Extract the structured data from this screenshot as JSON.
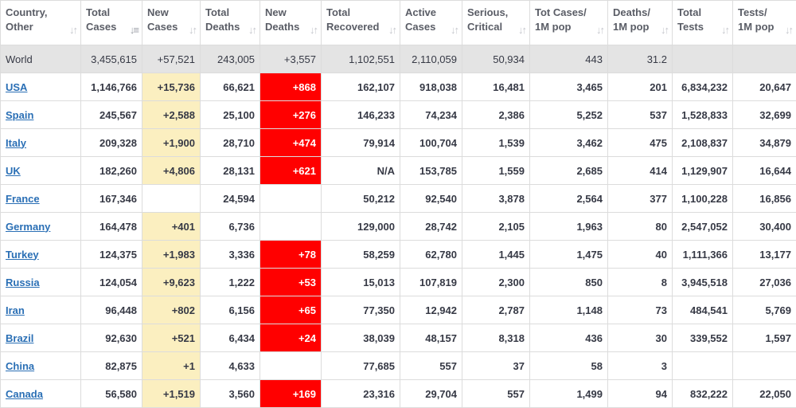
{
  "headers": [
    {
      "label": "Country,\nOther",
      "sort_icon": "sort-icon"
    },
    {
      "label": "Total\nCases",
      "sort_icon": "sort-desc-icon"
    },
    {
      "label": "New\nCases",
      "sort_icon": "sort-icon"
    },
    {
      "label": "Total\nDeaths",
      "sort_icon": "sort-icon"
    },
    {
      "label": "New\nDeaths",
      "sort_icon": "sort-icon"
    },
    {
      "label": "Total\nRecovered",
      "sort_icon": "sort-icon"
    },
    {
      "label": "Active\nCases",
      "sort_icon": "sort-icon"
    },
    {
      "label": "Serious,\nCritical",
      "sort_icon": "sort-icon"
    },
    {
      "label": "Tot Cases/\n1M pop",
      "sort_icon": "sort-icon"
    },
    {
      "label": "Deaths/\n1M pop",
      "sort_icon": "sort-icon"
    },
    {
      "label": "Total\nTests",
      "sort_icon": "sort-icon"
    },
    {
      "label": "Tests/\n1M pop",
      "sort_icon": "sort-icon"
    }
  ],
  "world": [
    "World",
    "3,455,615",
    "+57,521",
    "243,005",
    "+3,557",
    "1,102,551",
    "2,110,059",
    "50,934",
    "443",
    "31.2",
    "",
    ""
  ],
  "rows": [
    [
      "USA",
      "1,146,766",
      "+15,736",
      "66,621",
      "+868",
      "162,107",
      "918,038",
      "16,481",
      "3,465",
      "201",
      "6,834,232",
      "20,647"
    ],
    [
      "Spain",
      "245,567",
      "+2,588",
      "25,100",
      "+276",
      "146,233",
      "74,234",
      "2,386",
      "5,252",
      "537",
      "1,528,833",
      "32,699"
    ],
    [
      "Italy",
      "209,328",
      "+1,900",
      "28,710",
      "+474",
      "79,914",
      "100,704",
      "1,539",
      "3,462",
      "475",
      "2,108,837",
      "34,879"
    ],
    [
      "UK",
      "182,260",
      "+4,806",
      "28,131",
      "+621",
      "N/A",
      "153,785",
      "1,559",
      "2,685",
      "414",
      "1,129,907",
      "16,644"
    ],
    [
      "France",
      "167,346",
      "",
      "24,594",
      "",
      "50,212",
      "92,540",
      "3,878",
      "2,564",
      "377",
      "1,100,228",
      "16,856"
    ],
    [
      "Germany",
      "164,478",
      "+401",
      "6,736",
      "",
      "129,000",
      "28,742",
      "2,105",
      "1,963",
      "80",
      "2,547,052",
      "30,400"
    ],
    [
      "Turkey",
      "124,375",
      "+1,983",
      "3,336",
      "+78",
      "58,259",
      "62,780",
      "1,445",
      "1,475",
      "40",
      "1,111,366",
      "13,177"
    ],
    [
      "Russia",
      "124,054",
      "+9,623",
      "1,222",
      "+53",
      "15,013",
      "107,819",
      "2,300",
      "850",
      "8",
      "3,945,518",
      "27,036"
    ],
    [
      "Iran",
      "96,448",
      "+802",
      "6,156",
      "+65",
      "77,350",
      "12,942",
      "2,787",
      "1,148",
      "73",
      "484,541",
      "5,769"
    ],
    [
      "Brazil",
      "92,630",
      "+521",
      "6,434",
      "+24",
      "38,039",
      "48,157",
      "8,318",
      "436",
      "30",
      "339,552",
      "1,597"
    ],
    [
      "China",
      "82,875",
      "+1",
      "4,633",
      "",
      "77,685",
      "557",
      "37",
      "58",
      "3",
      "",
      ""
    ],
    [
      "Canada",
      "56,580",
      "+1,519",
      "3,560",
      "+169",
      "23,316",
      "29,704",
      "557",
      "1,499",
      "94",
      "832,222",
      "22,050"
    ]
  ],
  "colors": {
    "new_cases_bg": "#fbefc0",
    "new_deaths_bg": "#ff0000",
    "world_bg": "#e4e4e4",
    "link": "#2a6fb5"
  }
}
